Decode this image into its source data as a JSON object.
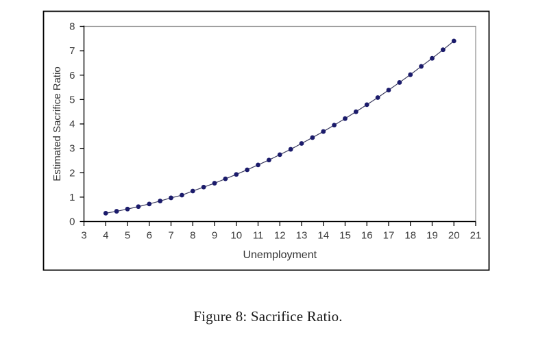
{
  "caption": {
    "text": "Figure 8: Sacrifice Ratio."
  },
  "chart_data": {
    "type": "line",
    "title": "",
    "xlabel": "Unemployment",
    "ylabel": "Estimated Sacrifice Ratio",
    "xlim": [
      3,
      21
    ],
    "ylim": [
      0,
      8
    ],
    "x_ticks": [
      3,
      4,
      5,
      6,
      7,
      8,
      9,
      10,
      11,
      12,
      13,
      14,
      15,
      16,
      17,
      18,
      19,
      20,
      21
    ],
    "y_ticks": [
      0,
      1,
      2,
      3,
      4,
      5,
      6,
      7,
      8
    ],
    "grid": false,
    "legend": "none",
    "marker": "circle",
    "x": [
      4,
      4.5,
      5,
      5.5,
      6,
      6.5,
      7,
      7.5,
      8,
      8.5,
      9,
      9.5,
      10,
      10.5,
      11,
      11.5,
      12,
      12.5,
      13,
      13.5,
      14,
      14.5,
      15,
      15.5,
      16,
      16.5,
      17,
      17.5,
      18,
      18.5,
      19,
      19.5,
      20
    ],
    "values": [
      0.34,
      0.42,
      0.51,
      0.61,
      0.72,
      0.84,
      0.97,
      1.08,
      1.25,
      1.41,
      1.57,
      1.75,
      1.93,
      2.12,
      2.32,
      2.52,
      2.74,
      2.96,
      3.2,
      3.44,
      3.69,
      3.95,
      4.22,
      4.5,
      4.79,
      5.08,
      5.39,
      5.7,
      6.02,
      6.36,
      6.69,
      7.04,
      7.4
    ],
    "colors": {
      "marker": "#1b1b6b",
      "line": "#3a3a5e",
      "axis": "#000000",
      "plot_border": "#8c8c8c",
      "outer_border": "#000000",
      "tick_label": "#3c3c3c",
      "axis_title": "#333333",
      "background": "#ffffff"
    }
  }
}
